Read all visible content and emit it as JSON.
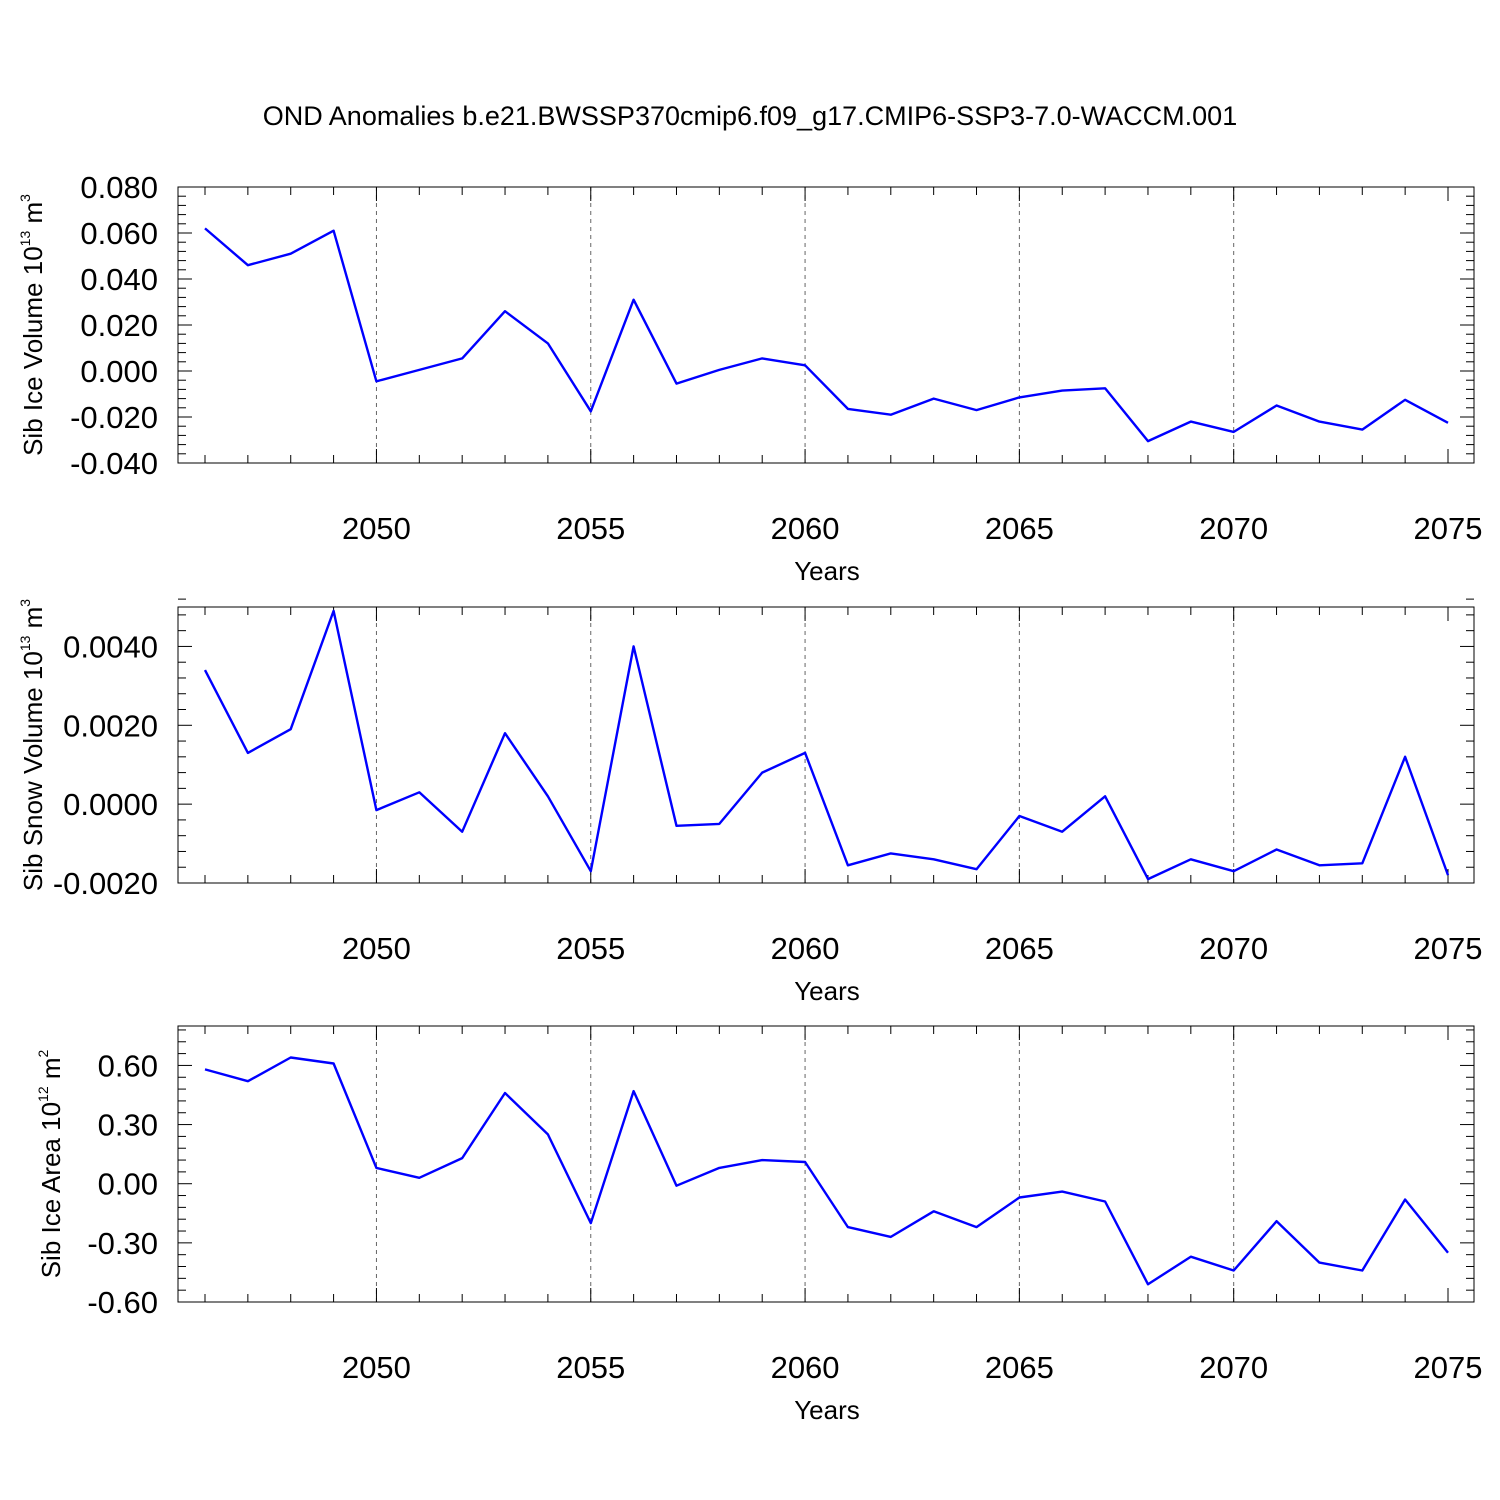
{
  "title": "OND Anomalies b.e21.BWSSP370cmip6.f09_g17.CMIP6-SSP3-7.0-WACCM.001",
  "line_color": "#0000ff",
  "chart_data": [
    {
      "type": "line",
      "xlabel": "Years",
      "ylabel": {
        "base": "Sib Ice Volume 10",
        "exp1": "13",
        "unit": " m",
        "exp2": "3"
      },
      "xlim": [
        2046,
        2075
      ],
      "ylim": [
        -0.04,
        0.08
      ],
      "yticks": [
        -0.04,
        -0.02,
        0.0,
        0.02,
        0.04,
        0.06,
        0.08
      ],
      "ytick_labels": [
        "-0.040",
        "-0.020",
        "0.000",
        "0.020",
        "0.040",
        "0.060",
        "0.080"
      ],
      "xticks": [
        2050,
        2055,
        2060,
        2065,
        2070,
        2075
      ],
      "xtick_labels": [
        "2050",
        "2055",
        "2060",
        "2065",
        "2070",
        "2075"
      ],
      "grid": "vertical dashed",
      "x": [
        2046,
        2047,
        2048,
        2049,
        2050,
        2051,
        2052,
        2053,
        2054,
        2055,
        2056,
        2057,
        2058,
        2059,
        2060,
        2061,
        2062,
        2063,
        2064,
        2065,
        2066,
        2067,
        2068,
        2069,
        2070,
        2071,
        2072,
        2073,
        2074,
        2075
      ],
      "values": [
        0.062,
        0.046,
        0.051,
        0.061,
        -0.0045,
        0.0005,
        0.0055,
        0.026,
        0.012,
        -0.0175,
        0.031,
        -0.0055,
        0.0005,
        0.0055,
        0.0025,
        -0.0165,
        -0.019,
        -0.012,
        -0.017,
        -0.0115,
        -0.0085,
        -0.0075,
        -0.0305,
        -0.022,
        -0.0265,
        -0.015,
        -0.022,
        -0.0255,
        -0.0125,
        -0.0225
      ]
    },
    {
      "type": "line",
      "xlabel": "Years",
      "ylabel": {
        "base": "Sib Snow Volume 10",
        "exp1": "13",
        "unit": " m",
        "exp2": "3"
      },
      "xlim": [
        2046,
        2075
      ],
      "ylim": [
        -0.002,
        0.005
      ],
      "yticks": [
        -0.002,
        0.0,
        0.002,
        0.004
      ],
      "ytick_labels": [
        "-0.0020",
        "0.0000",
        "0.0020",
        "0.0040"
      ],
      "xticks": [
        2050,
        2055,
        2060,
        2065,
        2070,
        2075
      ],
      "xtick_labels": [
        "2050",
        "2055",
        "2060",
        "2065",
        "2070",
        "2075"
      ],
      "grid": "vertical dashed",
      "x": [
        2046,
        2047,
        2048,
        2049,
        2050,
        2051,
        2052,
        2053,
        2054,
        2055,
        2056,
        2057,
        2058,
        2059,
        2060,
        2061,
        2062,
        2063,
        2064,
        2065,
        2066,
        2067,
        2068,
        2069,
        2070,
        2071,
        2072,
        2073,
        2074,
        2075
      ],
      "values": [
        0.0034,
        0.0013,
        0.0019,
        0.0049,
        -0.00015,
        0.0003,
        -0.0007,
        0.0018,
        0.0002,
        -0.0017,
        0.004,
        -0.00055,
        -0.0005,
        0.0008,
        0.0013,
        -0.00155,
        -0.00125,
        -0.0014,
        -0.00165,
        -0.0003,
        -0.0007,
        0.0002,
        -0.0019,
        -0.0014,
        -0.0017,
        -0.00115,
        -0.00155,
        -0.0015,
        0.0012,
        -0.0018
      ]
    },
    {
      "type": "line",
      "xlabel": "Years",
      "ylabel": {
        "base": "Sib Ice Area 10",
        "exp1": "12",
        "unit": " m",
        "exp2": "2"
      },
      "xlim": [
        2046,
        2075
      ],
      "ylim": [
        -0.6,
        0.8
      ],
      "yticks": [
        -0.6,
        -0.3,
        0.0,
        0.3,
        0.6
      ],
      "ytick_labels": [
        "-0.60",
        "-0.30",
        "0.00",
        "0.30",
        "0.60"
      ],
      "xticks": [
        2050,
        2055,
        2060,
        2065,
        2070,
        2075
      ],
      "xtick_labels": [
        "2050",
        "2055",
        "2060",
        "2065",
        "2070",
        "2075"
      ],
      "grid": "vertical dashed",
      "x": [
        2046,
        2047,
        2048,
        2049,
        2050,
        2051,
        2052,
        2053,
        2054,
        2055,
        2056,
        2057,
        2058,
        2059,
        2060,
        2061,
        2062,
        2063,
        2064,
        2065,
        2066,
        2067,
        2068,
        2069,
        2070,
        2071,
        2072,
        2073,
        2074,
        2075
      ],
      "values": [
        0.58,
        0.52,
        0.64,
        0.61,
        0.08,
        0.03,
        0.13,
        0.46,
        0.25,
        -0.2,
        0.47,
        -0.01,
        0.08,
        0.12,
        0.11,
        -0.22,
        -0.27,
        -0.14,
        -0.22,
        -0.07,
        -0.04,
        -0.09,
        -0.51,
        -0.37,
        -0.44,
        -0.19,
        -0.4,
        -0.44,
        -0.08,
        -0.35
      ]
    }
  ]
}
